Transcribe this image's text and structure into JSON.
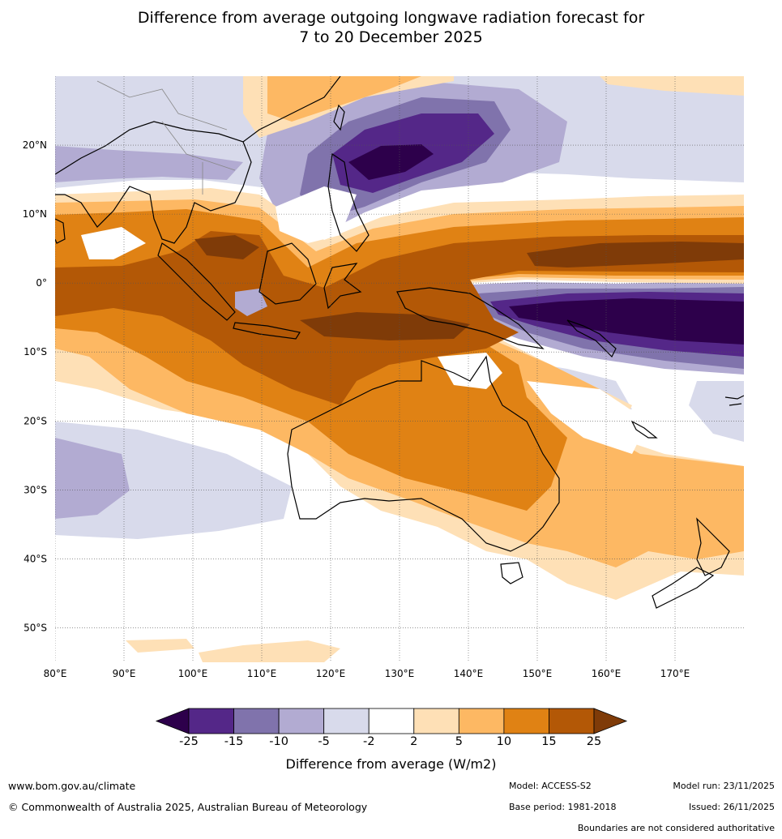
{
  "title": {
    "line1": "Difference from average outgoing longwave radiation forecast for",
    "line2": "7 to 20 December 2025"
  },
  "map": {
    "lat_labels": [
      "20°N",
      "10°N",
      "0°",
      "10°S",
      "20°S",
      "30°S",
      "40°S",
      "50°S"
    ],
    "lon_labels": [
      "80°E",
      "90°E",
      "100°E",
      "110°E",
      "120°E",
      "130°E",
      "140°E",
      "150°E",
      "160°E",
      "170°E"
    ],
    "lon_range": [
      80,
      180
    ],
    "lat_range": [
      -55,
      30
    ]
  },
  "colorbar": {
    "title": "Difference from average (W/m2)",
    "labels": [
      "-25",
      "-15",
      "-10",
      "-5",
      "-2",
      "2",
      "5",
      "10",
      "15",
      "25"
    ],
    "colors": [
      "#2d004b",
      "#542788",
      "#8073ac",
      "#b2abd2",
      "#d8daeb",
      "#ffffff",
      "#fee0b6",
      "#fdb863",
      "#e08214",
      "#b35806",
      "#7f3b08"
    ]
  },
  "footer": {
    "website": "www.bom.gov.au/climate",
    "copyright": "© Commonwealth of Australia 2025, Australian Bureau of Meteorology",
    "model": "Model: ACCESS-S2",
    "base_period": "Base period: 1981-2018",
    "model_run": "Model run: 23/11/2025",
    "issued": "Issued: 26/11/2025",
    "disclaimer": "Boundaries are not considered authoritative"
  }
}
